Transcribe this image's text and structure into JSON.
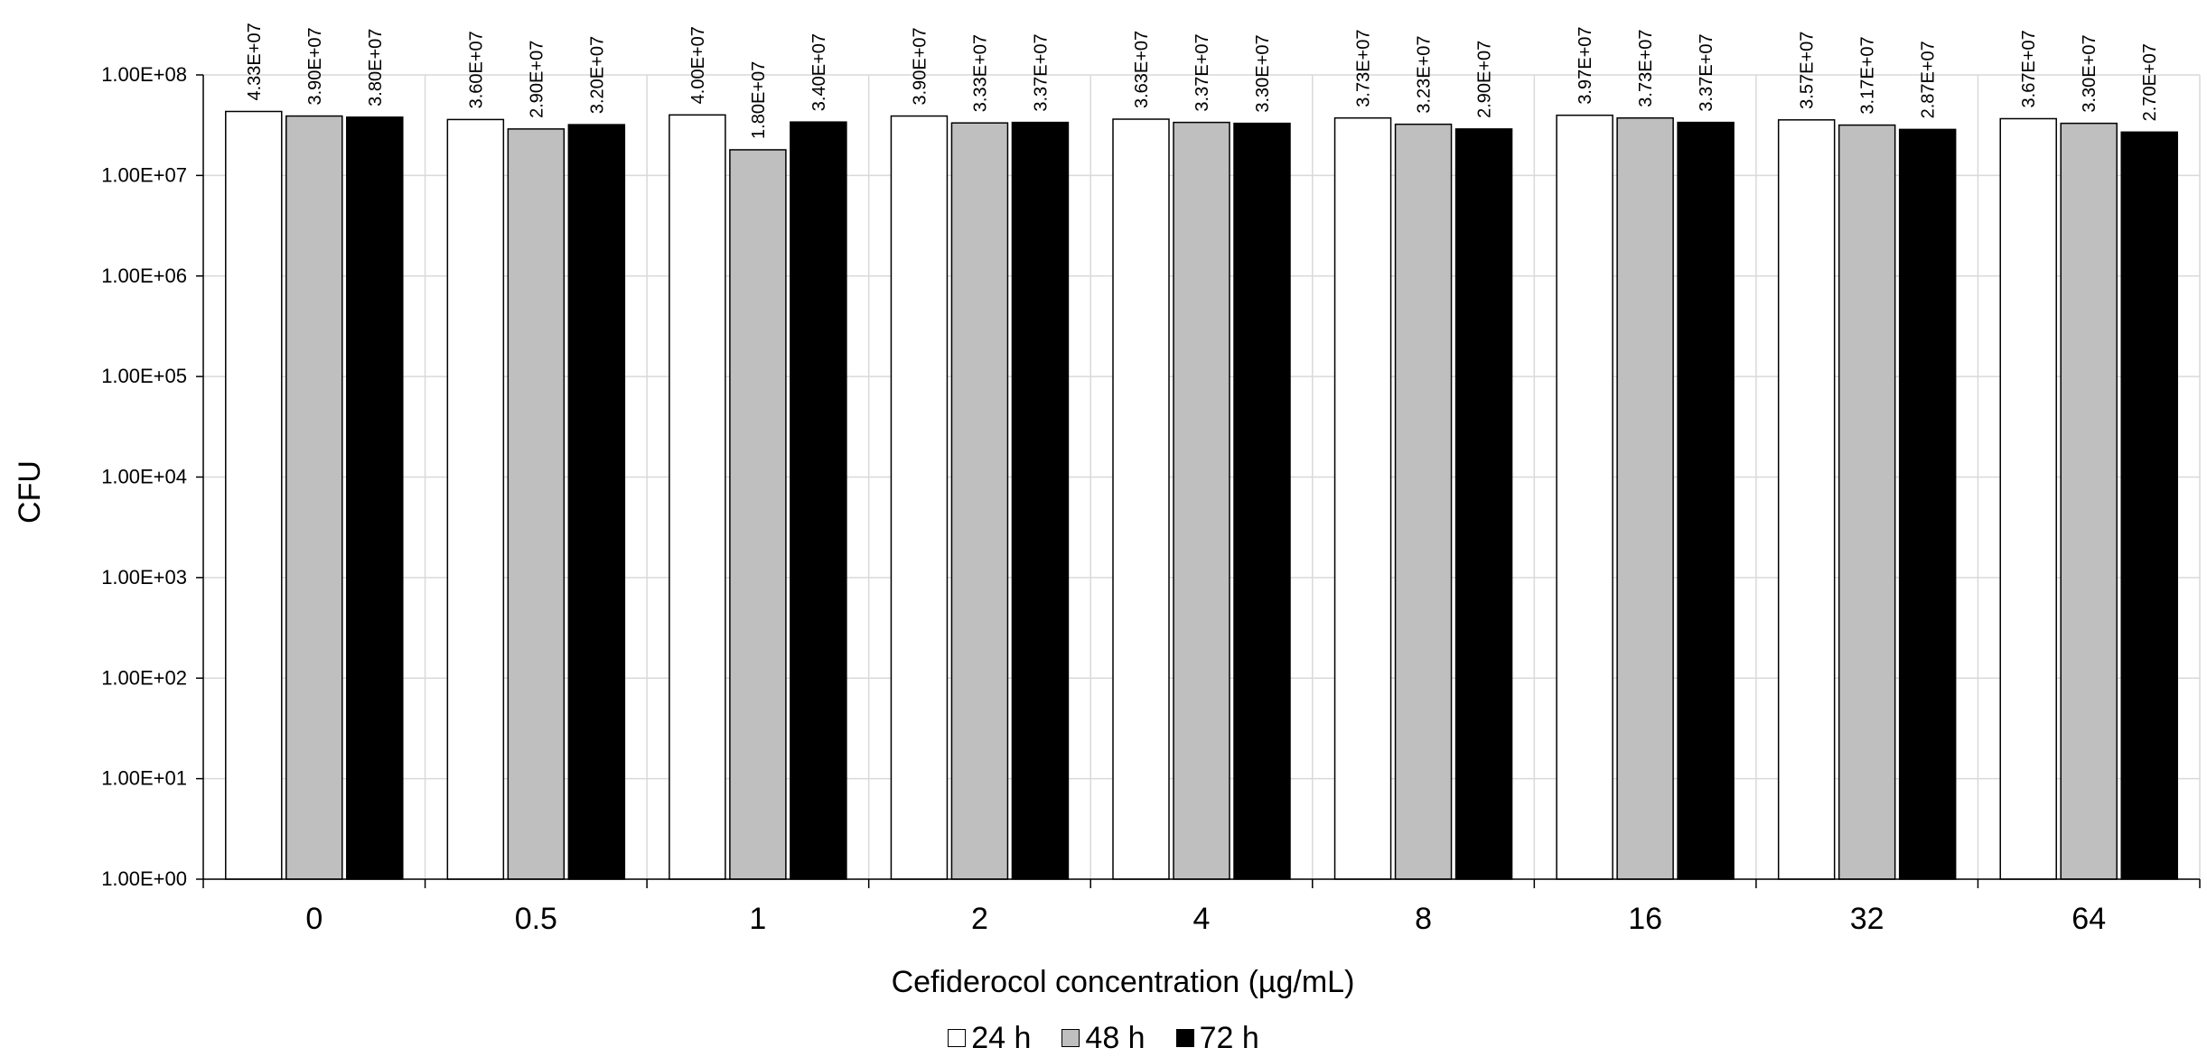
{
  "chart_data": {
    "type": "bar",
    "categories": [
      "0",
      "0.5",
      "1",
      "2",
      "4",
      "8",
      "16",
      "32",
      "64"
    ],
    "series": [
      {
        "name": "24 h",
        "color": "#ffffff",
        "values": [
          43300000.0,
          36000000.0,
          40000000.0,
          39000000.0,
          36300000.0,
          37300000.0,
          39700000.0,
          35700000.0,
          36700000.0
        ],
        "labels": [
          "4.33E+07",
          "3.60E+07",
          "4.00E+07",
          "3.90E+07",
          "3.63E+07",
          "3.73E+07",
          "3.97E+07",
          "3.57E+07",
          "3.67E+07"
        ]
      },
      {
        "name": "48 h",
        "color": "#bfbfbf",
        "values": [
          39000000.0,
          29000000.0,
          18000000.0,
          33300000.0,
          33700000.0,
          32300000.0,
          37300000.0,
          31700000.0,
          33000000.0
        ],
        "labels": [
          "3.90E+07",
          "2.90E+07",
          "1.80E+07",
          "3.33E+07",
          "3.37E+07",
          "3.23E+07",
          "3.73E+07",
          "3.17E+07",
          "3.30E+07"
        ]
      },
      {
        "name": "72 h",
        "color": "#000000",
        "values": [
          38000000.0,
          32000000.0,
          34000000.0,
          33700000.0,
          33000000.0,
          29000000.0,
          33700000.0,
          28700000.0,
          27000000.0
        ],
        "labels": [
          "3.80E+07",
          "3.20E+07",
          "3.40E+07",
          "3.37E+07",
          "3.30E+07",
          "2.90E+07",
          "3.37E+07",
          "2.87E+07",
          "2.70E+07"
        ]
      }
    ],
    "xlabel": "Cefiderocol concentration (µg/mL)",
    "ylabel": "CFU",
    "yscale": "log",
    "ylim": [
      1,
      100000000
    ],
    "yticks": [
      1,
      10,
      100,
      1000,
      10000,
      100000,
      1000000,
      10000000,
      100000000
    ],
    "ytick_labels": [
      "1.00E+00",
      "1.00E+01",
      "1.00E+02",
      "1.00E+03",
      "1.00E+04",
      "1.00E+05",
      "1.00E+06",
      "1.00E+07",
      "1.00E+08"
    ],
    "grid": true,
    "legend_position": "bottom-center"
  }
}
